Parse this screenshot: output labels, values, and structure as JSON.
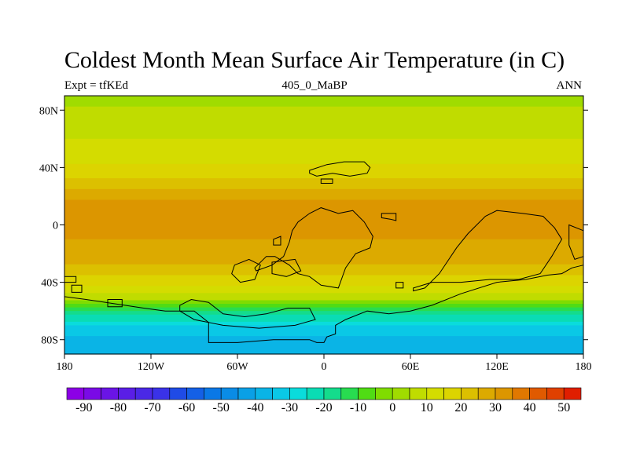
{
  "chart_data": {
    "type": "heatmap",
    "title": "Coldest Month Mean Surface Air Temperature (in C)",
    "subtitle_left": "Expt = tfKEd",
    "subtitle_center": "405_0_MaBP",
    "subtitle_right": "ANN",
    "map_projection": "cylindrical equidistant",
    "xlim": [
      -180,
      180
    ],
    "ylim": [
      -90,
      90
    ],
    "x_ticks": [
      {
        "value": -180,
        "label": "180"
      },
      {
        "value": -120,
        "label": "120W"
      },
      {
        "value": -60,
        "label": "60W"
      },
      {
        "value": 0,
        "label": "0"
      },
      {
        "value": 60,
        "label": "60E"
      },
      {
        "value": 120,
        "label": "120E"
      },
      {
        "value": 180,
        "label": "180"
      }
    ],
    "y_ticks": [
      {
        "value": 80,
        "label": "80N"
      },
      {
        "value": 40,
        "label": "40N"
      },
      {
        "value": 0,
        "label": "0"
      },
      {
        "value": -40,
        "label": "40S"
      },
      {
        "value": -80,
        "label": "80S"
      }
    ],
    "zonal_mean_temperature": {
      "latitudes": [
        90,
        80,
        70,
        60,
        50,
        40,
        30,
        20,
        10,
        0,
        -10,
        -20,
        -30,
        -40,
        -50,
        -60,
        -70,
        -80,
        -90
      ],
      "values_c": [
        2,
        6,
        8,
        10,
        12,
        16,
        22,
        28,
        34,
        33,
        30,
        28,
        24,
        17,
        8,
        -15,
        -30,
        -36,
        -40
      ]
    },
    "colorbar": {
      "levels": [
        -95,
        -90,
        -85,
        -80,
        -75,
        -70,
        -65,
        -60,
        -55,
        -50,
        -45,
        -40,
        -35,
        -30,
        -25,
        -20,
        -15,
        -10,
        -5,
        0,
        5,
        10,
        15,
        20,
        25,
        30,
        35,
        40,
        45,
        50,
        55
      ],
      "labels": [
        "-90",
        "-80",
        "-70",
        "-60",
        "-50",
        "-40",
        "-30",
        "-20",
        "-10",
        "0",
        "10",
        "20",
        "30",
        "40",
        "50"
      ],
      "colors": [
        "#8C00E6",
        "#7A0AE6",
        "#6A14E6",
        "#5A1EE6",
        "#4A28E6",
        "#3A32E8",
        "#1F4BE6",
        "#1460E6",
        "#0A78E6",
        "#0A8CE6",
        "#0AA0E6",
        "#0AB4E6",
        "#0AC8E6",
        "#0ADCDC",
        "#0ADCB4",
        "#14DC8C",
        "#28DC50",
        "#50DC14",
        "#80DC00",
        "#A0DC00",
        "#C0DC00",
        "#D4DC00",
        "#DCD400",
        "#DCC000",
        "#DCAA00",
        "#DC9600",
        "#E07800",
        "#E05A00",
        "#E04000",
        "#E01E00"
      ]
    },
    "land_outlines": [
      [
        [
          -175,
          -42
        ],
        [
          -168,
          -42
        ],
        [
          -168,
          -47
        ],
        [
          -175,
          -47
        ]
      ],
      [
        [
          -180,
          -50
        ],
        [
          -165,
          -52
        ],
        [
          -145,
          -55
        ],
        [
          -125,
          -58
        ],
        [
          -110,
          -60
        ],
        [
          -90,
          -60
        ],
        [
          -80,
          -68
        ],
        [
          -80,
          -82
        ],
        [
          -60,
          -82
        ],
        [
          -35,
          -80
        ],
        [
          -10,
          -80
        ],
        [
          -5,
          -82
        ],
        [
          0,
          -82
        ],
        [
          2,
          -78
        ],
        [
          8,
          -76
        ],
        [
          8,
          -70
        ],
        [
          15,
          -66
        ],
        [
          30,
          -60
        ],
        [
          45,
          -62
        ],
        [
          60,
          -60
        ],
        [
          75,
          -56
        ],
        [
          95,
          -48
        ],
        [
          120,
          -40
        ],
        [
          140,
          -38
        ],
        [
          155,
          -35
        ],
        [
          165,
          -34
        ],
        [
          172,
          -30
        ],
        [
          180,
          -28
        ],
        [
          180,
          -90
        ],
        [
          -180,
          -90
        ]
      ],
      [
        [
          -150,
          -52
        ],
        [
          -140,
          -52
        ],
        [
          -140,
          -57
        ],
        [
          -150,
          -57
        ]
      ],
      [
        [
          -47,
          -32
        ],
        [
          -36,
          -28
        ],
        [
          -28,
          -22
        ],
        [
          -24,
          -12
        ],
        [
          -22,
          -4
        ],
        [
          -18,
          2
        ],
        [
          -10,
          8
        ],
        [
          -2,
          12
        ],
        [
          10,
          8
        ],
        [
          20,
          10
        ],
        [
          28,
          2
        ],
        [
          34,
          -8
        ],
        [
          32,
          -16
        ],
        [
          22,
          -20
        ],
        [
          15,
          -30
        ],
        [
          10,
          -44
        ],
        [
          -2,
          -42
        ],
        [
          -10,
          -36
        ],
        [
          -18,
          -34
        ],
        [
          -24,
          -28
        ],
        [
          -34,
          -22
        ],
        [
          -40,
          -22
        ],
        [
          -48,
          -30
        ]
      ],
      [
        [
          -35,
          -10
        ],
        [
          -30,
          -8
        ],
        [
          -30,
          -14
        ],
        [
          -35,
          -14
        ]
      ],
      [
        [
          -10,
          38
        ],
        [
          2,
          42
        ],
        [
          14,
          44
        ],
        [
          28,
          44
        ],
        [
          32,
          40
        ],
        [
          30,
          36
        ],
        [
          18,
          34
        ],
        [
          6,
          36
        ],
        [
          -5,
          34
        ],
        [
          -10,
          36
        ]
      ],
      [
        [
          -2,
          32
        ],
        [
          6,
          32
        ],
        [
          6,
          29
        ],
        [
          -2,
          29
        ]
      ],
      [
        [
          40,
          8
        ],
        [
          50,
          8
        ],
        [
          50,
          3
        ],
        [
          46,
          4
        ],
        [
          40,
          5
        ]
      ],
      [
        [
          62,
          -46
        ],
        [
          70,
          -44
        ],
        [
          80,
          -34
        ],
        [
          92,
          -16
        ],
        [
          100,
          -6
        ],
        [
          112,
          6
        ],
        [
          120,
          10
        ],
        [
          138,
          8
        ],
        [
          152,
          6
        ],
        [
          160,
          -2
        ],
        [
          165,
          -10
        ],
        [
          158,
          -22
        ],
        [
          150,
          -34
        ],
        [
          135,
          -38
        ],
        [
          115,
          -38
        ],
        [
          95,
          -40
        ],
        [
          75,
          -40
        ],
        [
          62,
          -44
        ]
      ],
      [
        [
          170,
          0
        ],
        [
          180,
          -4
        ],
        [
          180,
          -22
        ],
        [
          174,
          -24
        ],
        [
          170,
          -14
        ]
      ],
      [
        [
          -36,
          -26
        ],
        [
          -20,
          -24
        ],
        [
          -16,
          -32
        ],
        [
          -26,
          -36
        ],
        [
          -36,
          -34
        ]
      ],
      [
        [
          -62,
          -28
        ],
        [
          -52,
          -24
        ],
        [
          -44,
          -28
        ],
        [
          -48,
          -38
        ],
        [
          -58,
          -40
        ],
        [
          -64,
          -34
        ]
      ],
      [
        [
          -100,
          -56
        ],
        [
          -92,
          -52
        ],
        [
          -80,
          -54
        ],
        [
          -70,
          -62
        ],
        [
          -55,
          -64
        ],
        [
          -40,
          -62
        ],
        [
          -25,
          -58
        ],
        [
          -10,
          -58
        ],
        [
          -6,
          -66
        ],
        [
          -20,
          -70
        ],
        [
          -45,
          -72
        ],
        [
          -70,
          -70
        ],
        [
          -90,
          -66
        ],
        [
          -100,
          -60
        ]
      ],
      [
        [
          -180,
          -36
        ],
        [
          -172,
          -36
        ],
        [
          -172,
          -40
        ],
        [
          -180,
          -40
        ]
      ],
      [
        [
          50,
          -40
        ],
        [
          55,
          -40
        ],
        [
          55,
          -44
        ],
        [
          50,
          -44
        ]
      ]
    ]
  }
}
